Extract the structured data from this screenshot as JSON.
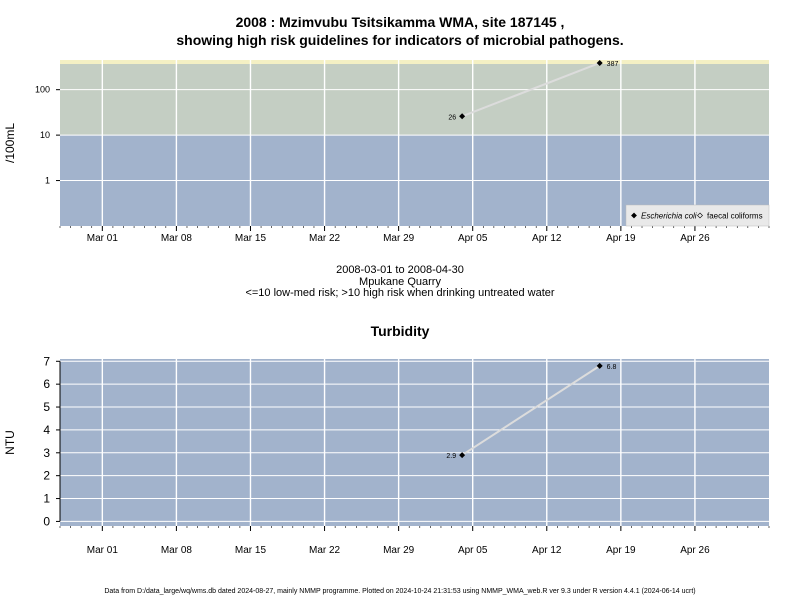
{
  "title_line1": "2008 : Mzimvubu Tsitsikamma WMA, site 187145 ,",
  "title_line2": "showing high risk guidelines for indicators of microbial pathogens.",
  "subtitle_lines": [
    "2008-03-01 to 2008-04-30",
    "Mpukane Quarry",
    "<=10 low-med risk; >10 high risk when drinking untreated water"
  ],
  "footer": "Data from D:/data_large/wq/wms.db dated 2024-08-27, mainly NMMP programme. Plotted on 2024-10-24 21:31:53 using NMMP_WMA_web.R ver 9.3 under R version 4.4.1 (2024-06-14 ucrt)",
  "colors": {
    "panel_low": "#a2b3cc",
    "panel_high": "#c4cec3",
    "panel_top": "#f4f0c4",
    "grid": "#ffffff",
    "line": "#dcdcdc",
    "marker": "#000000",
    "legend_bg": "#e9e9e9"
  },
  "chart_data": [
    {
      "type": "line",
      "title": "",
      "xlabel": "",
      "ylabel": "/100mL",
      "yscale": "log",
      "ylim": [
        0.1,
        450
      ],
      "xlim": [
        "2008-02-26",
        "2008-05-03"
      ],
      "x_ticks": [
        {
          "label": "Mar 01",
          "date": "2008-03-01"
        },
        {
          "label": "Mar 08",
          "date": "2008-03-08"
        },
        {
          "label": "Mar 15",
          "date": "2008-03-15"
        },
        {
          "label": "Mar 22",
          "date": "2008-03-22"
        },
        {
          "label": "Mar 29",
          "date": "2008-03-29"
        },
        {
          "label": "Apr 05",
          "date": "2008-04-05"
        },
        {
          "label": "Apr 12",
          "date": "2008-04-12"
        },
        {
          "label": "Apr 19",
          "date": "2008-04-19"
        },
        {
          "label": "Apr 26",
          "date": "2008-04-26"
        }
      ],
      "y_ticks": [
        {
          "label": "1",
          "value": 1
        },
        {
          "label": "10",
          "value": 10
        },
        {
          "label": "100",
          "value": 100
        }
      ],
      "risk_threshold": 10,
      "grid": true,
      "legend": {
        "placement": "bottom-right",
        "entries": [
          {
            "label": "Escherichia coli",
            "marker": "filled-diamond",
            "italic": true
          },
          {
            "label": "faecal coliforms",
            "marker": "open-diamond",
            "italic": false
          }
        ]
      },
      "series": [
        {
          "name": "Escherichia coli",
          "points": [
            {
              "x": "2008-04-04",
              "y": 26,
              "label": "26"
            },
            {
              "x": "2008-04-17",
              "y": 387,
              "label": "387"
            }
          ]
        }
      ]
    },
    {
      "type": "line",
      "title": "Turbidity",
      "xlabel": "",
      "ylabel": "NTU",
      "yscale": "linear",
      "ylim": [
        -0.2,
        7.1
      ],
      "xlim": [
        "2008-02-26",
        "2008-05-03"
      ],
      "x_ticks": [
        {
          "label": "Mar 01",
          "date": "2008-03-01"
        },
        {
          "label": "Mar 08",
          "date": "2008-03-08"
        },
        {
          "label": "Mar 15",
          "date": "2008-03-15"
        },
        {
          "label": "Mar 22",
          "date": "2008-03-22"
        },
        {
          "label": "Mar 29",
          "date": "2008-03-29"
        },
        {
          "label": "Apr 05",
          "date": "2008-04-05"
        },
        {
          "label": "Apr 12",
          "date": "2008-04-12"
        },
        {
          "label": "Apr 19",
          "date": "2008-04-19"
        },
        {
          "label": "Apr 26",
          "date": "2008-04-26"
        }
      ],
      "y_ticks": [
        {
          "label": "0",
          "value": 0
        },
        {
          "label": "1",
          "value": 1
        },
        {
          "label": "2",
          "value": 2
        },
        {
          "label": "3",
          "value": 3
        },
        {
          "label": "4",
          "value": 4
        },
        {
          "label": "5",
          "value": 5
        },
        {
          "label": "6",
          "value": 6
        },
        {
          "label": "7",
          "value": 7
        }
      ],
      "grid": true,
      "series": [
        {
          "name": "",
          "points": [
            {
              "x": "2008-04-04",
              "y": 2.9,
              "label": "2.9"
            },
            {
              "x": "2008-04-17",
              "y": 6.8,
              "label": "6.8"
            }
          ]
        }
      ]
    }
  ]
}
